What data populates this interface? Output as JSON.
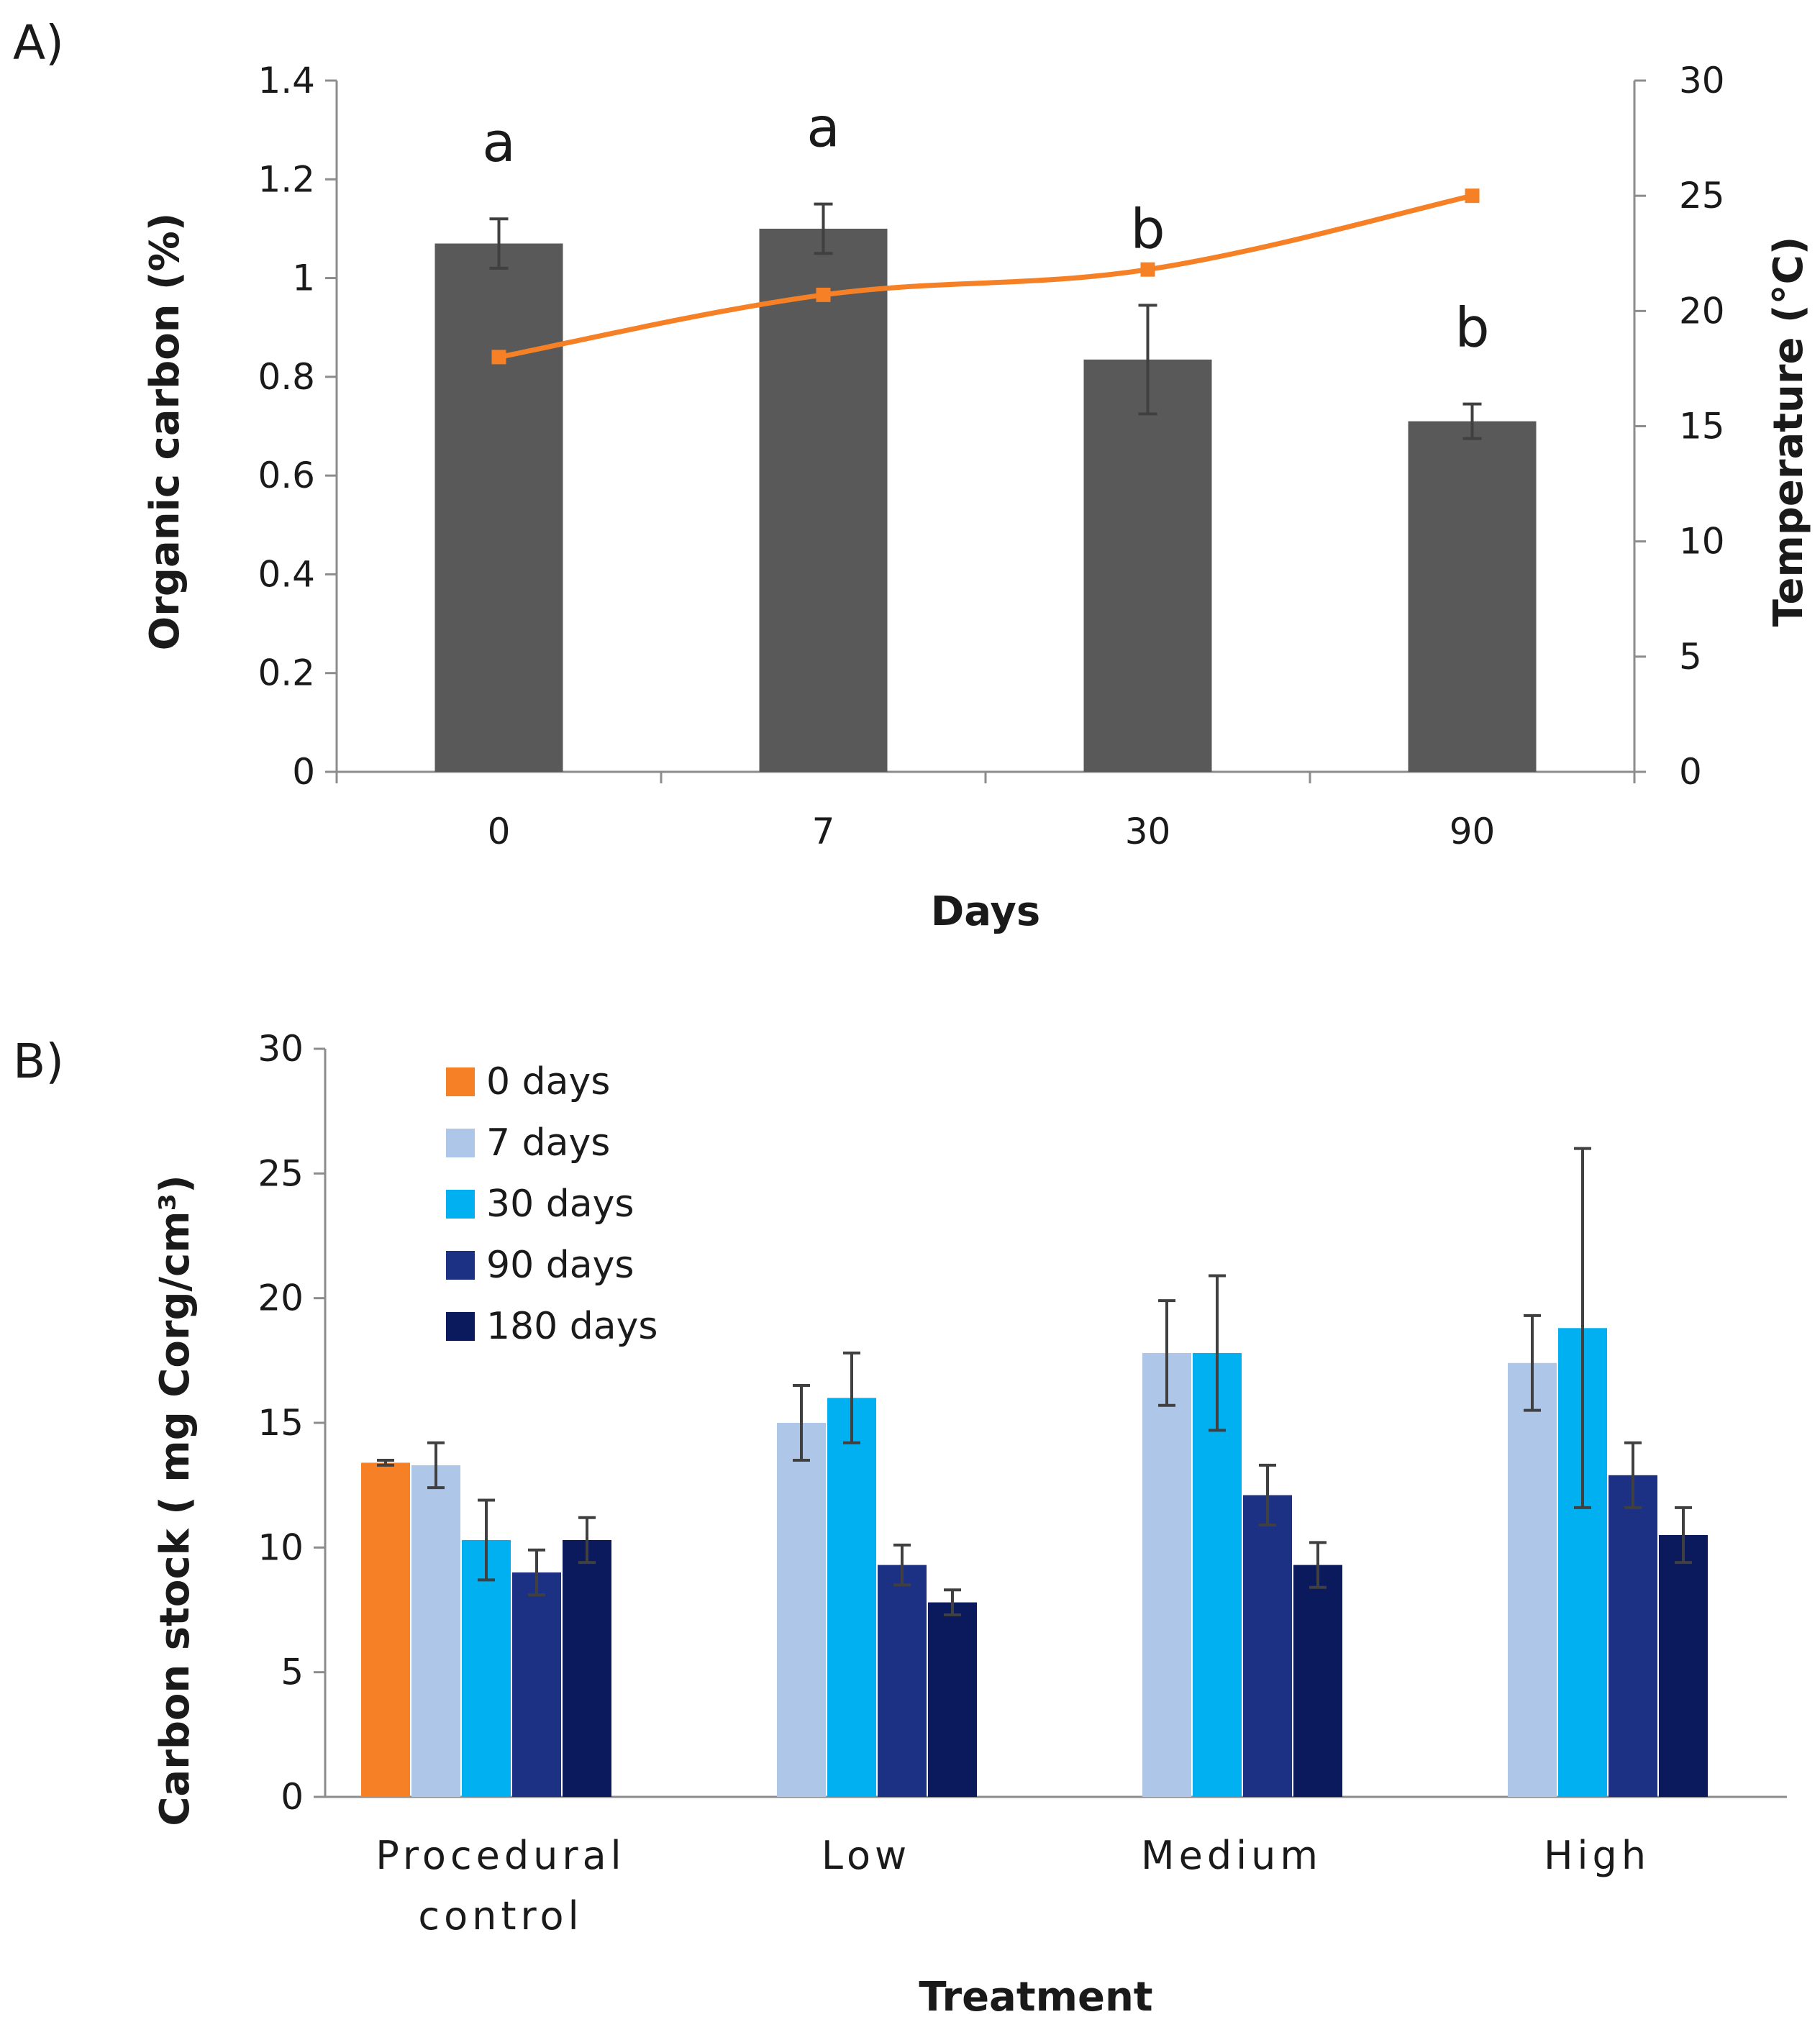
{
  "chart_data": [
    {
      "panel_label": "A)",
      "type": "bar",
      "title": "",
      "xlabel": "Days",
      "ylabel": "Organic carbon (%)",
      "y2label": "Temperature (°C)",
      "ylim": [
        0,
        1.4
      ],
      "ytick_labels": [
        "0",
        "0.2",
        "0.4",
        "0.6",
        "0.8",
        "1",
        "1.2",
        "1.4"
      ],
      "y2lim": [
        0,
        30
      ],
      "y2tick_labels": [
        "0",
        "5",
        "10",
        "15",
        "20",
        "25",
        "30"
      ],
      "categories": [
        "0",
        "7",
        "30",
        "90"
      ],
      "series": [
        {
          "name": "Organic carbon",
          "axis": "left",
          "kind": "bar",
          "color": "#595959",
          "values": [
            1.07,
            1.1,
            0.835,
            0.71
          ],
          "errors": [
            0.05,
            0.05,
            0.11,
            0.035
          ]
        },
        {
          "name": "Temperature",
          "axis": "right",
          "kind": "line",
          "color": "#F58025",
          "values": [
            18.0,
            20.7,
            21.8,
            25.0
          ]
        }
      ],
      "annotations": [
        "a",
        "a",
        "b",
        "b"
      ],
      "grid": false,
      "legend": "none"
    },
    {
      "panel_label": "B)",
      "type": "bar",
      "title": "",
      "xlabel": "Treatment",
      "ylabel": "Carbon stock ( mg Corg/cm³)",
      "ylim": [
        0,
        30
      ],
      "ytick_labels": [
        "0",
        "5",
        "10",
        "15",
        "20",
        "25",
        "30"
      ],
      "categories": [
        [
          "Procedural",
          "control"
        ],
        [
          "Low"
        ],
        [
          "Medium"
        ],
        [
          "High"
        ]
      ],
      "series": [
        {
          "name": "0 days",
          "color": "#F58025",
          "values": [
            13.4,
            null,
            null,
            null
          ],
          "errors": [
            0.1,
            null,
            null,
            null
          ]
        },
        {
          "name": "7 days",
          "color": "#AEC7E9",
          "values": [
            13.3,
            15.0,
            17.8,
            17.4
          ],
          "errors": [
            0.9,
            1.5,
            2.1,
            1.9
          ]
        },
        {
          "name": "30 days",
          "color": "#00B0F0",
          "values": [
            10.3,
            16.0,
            17.8,
            18.8
          ],
          "errors": [
            1.6,
            1.8,
            3.1,
            7.2
          ]
        },
        {
          "name": "90 days",
          "color": "#1C3184",
          "values": [
            9.0,
            9.3,
            12.1,
            12.9
          ],
          "errors": [
            0.9,
            0.8,
            1.2,
            1.3
          ]
        },
        {
          "name": "180 days",
          "color": "#0B1A5C",
          "values": [
            10.3,
            7.8,
            9.3,
            10.5
          ],
          "errors": [
            0.9,
            0.5,
            0.9,
            1.1
          ]
        }
      ],
      "grid": false,
      "legend": "top-left"
    }
  ]
}
